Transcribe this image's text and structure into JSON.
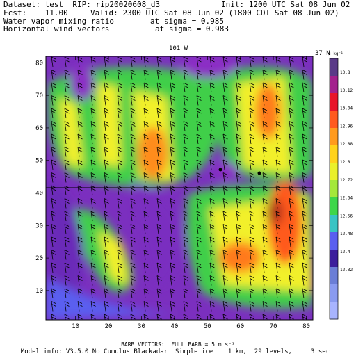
{
  "header": {
    "dataset": "Dataset: test  RIP: rip20020608_d3",
    "init": "Init: 1200 UTC Sat 08 Jun 02",
    "fcst": "Fcst:    11.00",
    "valid": "Valid: 2300 UTC Sat 08 Jun 02 (1800 CDT Sat 08 Jun 02)",
    "field1": "Water vapor mixing ratio",
    "field1_level": "at sigma = 0.985",
    "field2": "Horizontal wind vectors",
    "field2_level": "at sigma = 0.983"
  },
  "plot": {
    "top_label_lon": "101 W",
    "top_label_lat": "37 N",
    "unit_label": "g kg⁻¹",
    "x_ticks": [
      "10",
      "20",
      "30",
      "40",
      "50",
      "60",
      "70",
      "80"
    ],
    "y_ticks": [
      "10",
      "20",
      "30",
      "40",
      "50",
      "60",
      "70",
      "80"
    ]
  },
  "colorbar": {
    "labels": [
      "13.8",
      "13.12",
      "13.04",
      "12.96",
      "12.88",
      "12.8",
      "12.72",
      "12.64",
      "12.56",
      "12.48",
      "12.4",
      "12.32"
    ],
    "colors": [
      "#5a3a88",
      "#a3218d",
      "#e8142a",
      "#ff5a1f",
      "#ff9a1e",
      "#ffd21b",
      "#eaf02b",
      "#a4e83a",
      "#3ed64a",
      "#38c4c4",
      "#5a5ff0",
      "#3c1e9c",
      "#6b7ed6",
      "#8a9bf0",
      "#a8b4ff"
    ]
  },
  "footer": {
    "barbs": "BARB VECTORS:  FULL BARB = 5 m s⁻¹",
    "model": "Model info: V3.5.0 No Cumulus Blackadar  Simple ice    1 km,  29 levels,     3 sec"
  }
}
